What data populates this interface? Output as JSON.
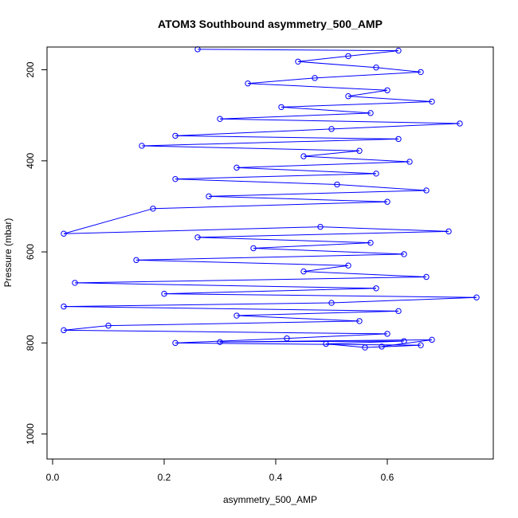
{
  "chart_data": {
    "type": "scatter",
    "title": "ATOM3 Southbound asymmetry_500_AMP",
    "xlabel": "asymmetry_500_AMP",
    "ylabel": "Pressure (mbar)",
    "xlim": [
      -0.01,
      0.79
    ],
    "ylim": [
      150,
      1055
    ],
    "y_reversed": true,
    "grid": false,
    "marker": "open-circle",
    "lines_connecting_points": true,
    "series_color": "#0000ff",
    "x_ticks": [
      0.0,
      0.2,
      0.4,
      0.6
    ],
    "x_tick_labels": [
      "0.0",
      "0.2",
      "0.4",
      "0.6"
    ],
    "y_ticks": [
      200,
      400,
      600,
      800,
      1000
    ],
    "y_tick_labels": [
      "200",
      "400",
      "600",
      "800",
      "1000"
    ],
    "series": [
      {
        "values": [
          [
            0.26,
            155
          ],
          [
            0.62,
            158
          ],
          [
            0.53,
            170
          ],
          [
            0.44,
            182
          ],
          [
            0.58,
            195
          ],
          [
            0.66,
            205
          ],
          [
            0.47,
            218
          ],
          [
            0.35,
            230
          ],
          [
            0.6,
            245
          ],
          [
            0.53,
            258
          ],
          [
            0.68,
            270
          ],
          [
            0.41,
            282
          ],
          [
            0.57,
            295
          ],
          [
            0.3,
            308
          ],
          [
            0.73,
            318
          ],
          [
            0.5,
            330
          ],
          [
            0.22,
            345
          ],
          [
            0.62,
            352
          ],
          [
            0.16,
            367
          ],
          [
            0.55,
            378
          ],
          [
            0.45,
            390
          ],
          [
            0.64,
            402
          ],
          [
            0.33,
            415
          ],
          [
            0.58,
            428
          ],
          [
            0.22,
            440
          ],
          [
            0.51,
            452
          ],
          [
            0.67,
            465
          ],
          [
            0.28,
            478
          ],
          [
            0.6,
            490
          ],
          [
            0.18,
            505
          ],
          [
            0.02,
            560
          ],
          [
            0.48,
            545
          ],
          [
            0.71,
            555
          ],
          [
            0.26,
            568
          ],
          [
            0.57,
            580
          ],
          [
            0.36,
            592
          ],
          [
            0.63,
            605
          ],
          [
            0.15,
            618
          ],
          [
            0.53,
            630
          ],
          [
            0.45,
            643
          ],
          [
            0.67,
            655
          ],
          [
            0.04,
            668
          ],
          [
            0.58,
            680
          ],
          [
            0.2,
            692
          ],
          [
            0.76,
            700
          ],
          [
            0.5,
            712
          ],
          [
            0.02,
            720
          ],
          [
            0.62,
            730
          ],
          [
            0.33,
            740
          ],
          [
            0.55,
            752
          ],
          [
            0.1,
            762
          ],
          [
            0.02,
            772
          ],
          [
            0.6,
            780
          ],
          [
            0.42,
            790
          ],
          [
            0.22,
            800
          ],
          [
            0.66,
            805
          ],
          [
            0.56,
            810
          ],
          [
            0.49,
            802
          ],
          [
            0.63,
            796
          ],
          [
            0.3,
            798
          ],
          [
            0.68,
            793
          ],
          [
            0.59,
            808
          ]
        ]
      }
    ]
  }
}
